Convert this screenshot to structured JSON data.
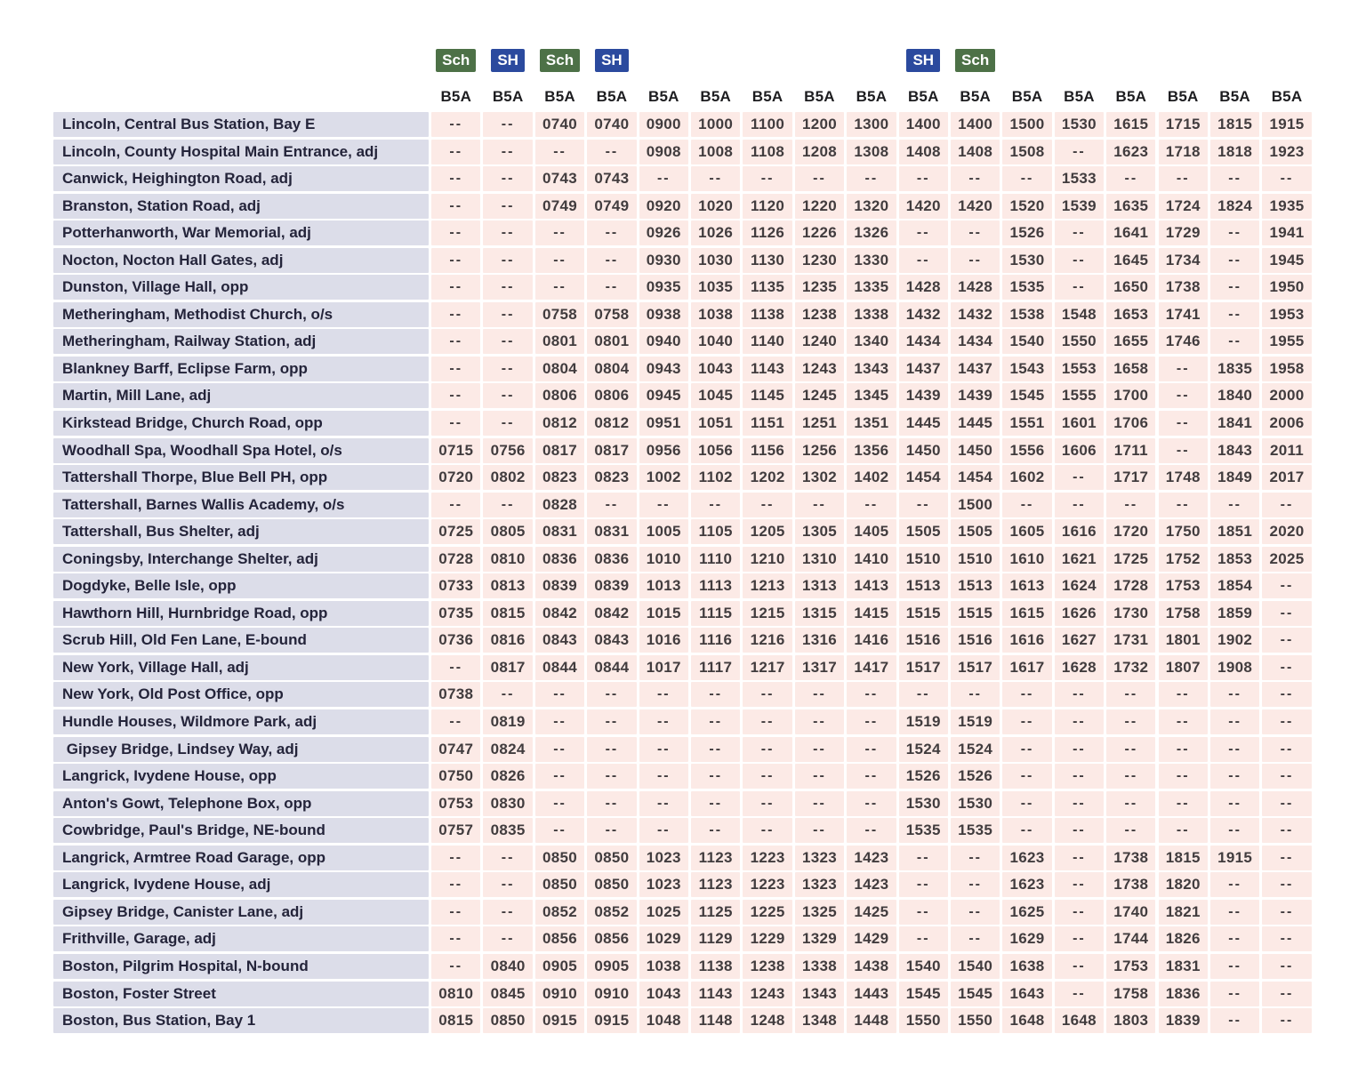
{
  "no_service": "--",
  "colors": {
    "badge_school": "#4d7147",
    "badge_school_holiday": "#2b4a9e",
    "stop_cell_background": "#dcdde9",
    "time_cell_background": "#fceae6",
    "stop_text": "#24243a",
    "time_text": "#413c3e"
  },
  "legend_badges": [
    {
      "label": "Sch",
      "type": "school",
      "column": 1
    },
    {
      "label": "SH",
      "type": "school_holiday",
      "column": 2
    },
    {
      "label": "Sch",
      "type": "school",
      "column": 3
    },
    {
      "label": "SH",
      "type": "school_holiday",
      "column": 4
    },
    {
      "label": "SH",
      "type": "school_holiday",
      "column": 10
    },
    {
      "label": "Sch",
      "type": "school",
      "column": 11
    }
  ],
  "route_labels": [
    "B5A",
    "B5A",
    "B5A",
    "B5A",
    "B5A",
    "B5A",
    "B5A",
    "B5A",
    "B5A",
    "B5A",
    "B5A",
    "B5A",
    "B5A",
    "B5A",
    "B5A",
    "B5A",
    "B5A"
  ],
  "rows": [
    {
      "stop": "Lincoln, Central Bus Station, Bay E",
      "times": [
        "--",
        "--",
        "0740",
        "0740",
        "0900",
        "1000",
        "1100",
        "1200",
        "1300",
        "1400",
        "1400",
        "1500",
        "1530",
        "1615",
        "1715",
        "1815",
        "1915"
      ]
    },
    {
      "stop": "Lincoln, County Hospital Main Entrance, adj",
      "times": [
        "--",
        "--",
        "--",
        "--",
        "0908",
        "1008",
        "1108",
        "1208",
        "1308",
        "1408",
        "1408",
        "1508",
        "--",
        "1623",
        "1718",
        "1818",
        "1923"
      ]
    },
    {
      "stop": "Canwick, Heighington Road, adj",
      "times": [
        "--",
        "--",
        "0743",
        "0743",
        "--",
        "--",
        "--",
        "--",
        "--",
        "--",
        "--",
        "--",
        "1533",
        "--",
        "--",
        "--",
        "--"
      ]
    },
    {
      "stop": "Branston, Station Road, adj",
      "times": [
        "--",
        "--",
        "0749",
        "0749",
        "0920",
        "1020",
        "1120",
        "1220",
        "1320",
        "1420",
        "1420",
        "1520",
        "1539",
        "1635",
        "1724",
        "1824",
        "1935"
      ]
    },
    {
      "stop": "Potterhanworth, War Memorial, adj",
      "times": [
        "--",
        "--",
        "--",
        "--",
        "0926",
        "1026",
        "1126",
        "1226",
        "1326",
        "--",
        "--",
        "1526",
        "--",
        "1641",
        "1729",
        "--",
        "1941"
      ]
    },
    {
      "stop": "Nocton, Nocton Hall Gates, adj",
      "times": [
        "--",
        "--",
        "--",
        "--",
        "0930",
        "1030",
        "1130",
        "1230",
        "1330",
        "--",
        "--",
        "1530",
        "--",
        "1645",
        "1734",
        "--",
        "1945"
      ]
    },
    {
      "stop": "Dunston, Village Hall, opp",
      "times": [
        "--",
        "--",
        "--",
        "--",
        "0935",
        "1035",
        "1135",
        "1235",
        "1335",
        "1428",
        "1428",
        "1535",
        "--",
        "1650",
        "1738",
        "--",
        "1950"
      ]
    },
    {
      "stop": "Metheringham, Methodist Church, o/s",
      "times": [
        "--",
        "--",
        "0758",
        "0758",
        "0938",
        "1038",
        "1138",
        "1238",
        "1338",
        "1432",
        "1432",
        "1538",
        "1548",
        "1653",
        "1741",
        "--",
        "1953"
      ]
    },
    {
      "stop": "Metheringham, Railway Station, adj",
      "times": [
        "--",
        "--",
        "0801",
        "0801",
        "0940",
        "1040",
        "1140",
        "1240",
        "1340",
        "1434",
        "1434",
        "1540",
        "1550",
        "1655",
        "1746",
        "--",
        "1955"
      ]
    },
    {
      "stop": "Blankney Barff, Eclipse Farm, opp",
      "times": [
        "--",
        "--",
        "0804",
        "0804",
        "0943",
        "1043",
        "1143",
        "1243",
        "1343",
        "1437",
        "1437",
        "1543",
        "1553",
        "1658",
        "--",
        "1835",
        "1958"
      ]
    },
    {
      "stop": "Martin, Mill Lane, adj",
      "times": [
        "--",
        "--",
        "0806",
        "0806",
        "0945",
        "1045",
        "1145",
        "1245",
        "1345",
        "1439",
        "1439",
        "1545",
        "1555",
        "1700",
        "--",
        "1840",
        "2000"
      ]
    },
    {
      "stop": "Kirkstead Bridge, Church Road, opp",
      "times": [
        "--",
        "--",
        "0812",
        "0812",
        "0951",
        "1051",
        "1151",
        "1251",
        "1351",
        "1445",
        "1445",
        "1551",
        "1601",
        "1706",
        "--",
        "1841",
        "2006"
      ]
    },
    {
      "stop": "Woodhall Spa, Woodhall Spa Hotel, o/s",
      "times": [
        "0715",
        "0756",
        "0817",
        "0817",
        "0956",
        "1056",
        "1156",
        "1256",
        "1356",
        "1450",
        "1450",
        "1556",
        "1606",
        "1711",
        "--",
        "1843",
        "2011"
      ]
    },
    {
      "stop": "Tattershall Thorpe, Blue Bell PH, opp",
      "times": [
        "0720",
        "0802",
        "0823",
        "0823",
        "1002",
        "1102",
        "1202",
        "1302",
        "1402",
        "1454",
        "1454",
        "1602",
        "--",
        "1717",
        "1748",
        "1849",
        "2017"
      ]
    },
    {
      "stop": "Tattershall, Barnes Wallis Academy, o/s",
      "times": [
        "--",
        "--",
        "0828",
        "--",
        "--",
        "--",
        "--",
        "--",
        "--",
        "--",
        "1500",
        "--",
        "--",
        "--",
        "--",
        "--",
        "--"
      ]
    },
    {
      "stop": "Tattershall, Bus Shelter, adj",
      "times": [
        "0725",
        "0805",
        "0831",
        "0831",
        "1005",
        "1105",
        "1205",
        "1305",
        "1405",
        "1505",
        "1505",
        "1605",
        "1616",
        "1720",
        "1750",
        "1851",
        "2020"
      ]
    },
    {
      "stop": "Coningsby, Interchange Shelter, adj",
      "times": [
        "0728",
        "0810",
        "0836",
        "0836",
        "1010",
        "1110",
        "1210",
        "1310",
        "1410",
        "1510",
        "1510",
        "1610",
        "1621",
        "1725",
        "1752",
        "1853",
        "2025"
      ]
    },
    {
      "stop": "Dogdyke, Belle Isle, opp",
      "times": [
        "0733",
        "0813",
        "0839",
        "0839",
        "1013",
        "1113",
        "1213",
        "1313",
        "1413",
        "1513",
        "1513",
        "1613",
        "1624",
        "1728",
        "1753",
        "1854",
        "--"
      ]
    },
    {
      "stop": "Hawthorn Hill, Hurnbridge Road, opp",
      "times": [
        "0735",
        "0815",
        "0842",
        "0842",
        "1015",
        "1115",
        "1215",
        "1315",
        "1415",
        "1515",
        "1515",
        "1615",
        "1626",
        "1730",
        "1758",
        "1859",
        "--"
      ]
    },
    {
      "stop": "Scrub Hill, Old Fen Lane, E-bound",
      "times": [
        "0736",
        "0816",
        "0843",
        "0843",
        "1016",
        "1116",
        "1216",
        "1316",
        "1416",
        "1516",
        "1516",
        "1616",
        "1627",
        "1731",
        "1801",
        "1902",
        "--"
      ]
    },
    {
      "stop": "New York, Village Hall, adj",
      "times": [
        "--",
        "0817",
        "0844",
        "0844",
        "1017",
        "1117",
        "1217",
        "1317",
        "1417",
        "1517",
        "1517",
        "1617",
        "1628",
        "1732",
        "1807",
        "1908",
        "--"
      ]
    },
    {
      "stop": "New York, Old Post Office, opp",
      "times": [
        "0738",
        "--",
        "--",
        "--",
        "--",
        "--",
        "--",
        "--",
        "--",
        "--",
        "--",
        "--",
        "--",
        "--",
        "--",
        "--",
        "--"
      ]
    },
    {
      "stop": "Hundle Houses, Wildmore Park, adj",
      "times": [
        "--",
        "0819",
        "--",
        "--",
        "--",
        "--",
        "--",
        "--",
        "--",
        "1519",
        "1519",
        "--",
        "--",
        "--",
        "--",
        "--",
        "--"
      ]
    },
    {
      "stop": " Gipsey Bridge, Lindsey Way, adj",
      "times": [
        "0747",
        "0824",
        "--",
        "--",
        "--",
        "--",
        "--",
        "--",
        "--",
        "1524",
        "1524",
        "--",
        "--",
        "--",
        "--",
        "--",
        "--"
      ]
    },
    {
      "stop": "Langrick, Ivydene House, opp",
      "times": [
        "0750",
        "0826",
        "--",
        "--",
        "--",
        "--",
        "--",
        "--",
        "--",
        "1526",
        "1526",
        "--",
        "--",
        "--",
        "--",
        "--",
        "--"
      ]
    },
    {
      "stop": "Anton's Gowt, Telephone Box, opp",
      "times": [
        "0753",
        "0830",
        "--",
        "--",
        "--",
        "--",
        "--",
        "--",
        "--",
        "1530",
        "1530",
        "--",
        "--",
        "--",
        "--",
        "--",
        "--"
      ]
    },
    {
      "stop": "Cowbridge, Paul's Bridge, NE-bound",
      "times": [
        "0757",
        "0835",
        "--",
        "--",
        "--",
        "--",
        "--",
        "--",
        "--",
        "1535",
        "1535",
        "--",
        "--",
        "--",
        "--",
        "--",
        "--"
      ]
    },
    {
      "stop": "Langrick, Armtree Road Garage, opp",
      "times": [
        "--",
        "--",
        "0850",
        "0850",
        "1023",
        "1123",
        "1223",
        "1323",
        "1423",
        "--",
        "--",
        "1623",
        "--",
        "1738",
        "1815",
        "1915",
        "--"
      ]
    },
    {
      "stop": "Langrick, Ivydene House, adj",
      "times": [
        "--",
        "--",
        "0850",
        "0850",
        "1023",
        "1123",
        "1223",
        "1323",
        "1423",
        "--",
        "--",
        "1623",
        "--",
        "1738",
        "1820",
        "--",
        "--"
      ]
    },
    {
      "stop": "Gipsey Bridge, Canister Lane, adj",
      "times": [
        "--",
        "--",
        "0852",
        "0852",
        "1025",
        "1125",
        "1225",
        "1325",
        "1425",
        "--",
        "--",
        "1625",
        "--",
        "1740",
        "1821",
        "--",
        "--"
      ]
    },
    {
      "stop": "Frithville, Garage, adj",
      "times": [
        "--",
        "--",
        "0856",
        "0856",
        "1029",
        "1129",
        "1229",
        "1329",
        "1429",
        "--",
        "--",
        "1629",
        "--",
        "1744",
        "1826",
        "--",
        "--"
      ]
    },
    {
      "stop": "Boston, Pilgrim Hospital, N-bound",
      "times": [
        "--",
        "0840",
        "0905",
        "0905",
        "1038",
        "1138",
        "1238",
        "1338",
        "1438",
        "1540",
        "1540",
        "1638",
        "--",
        "1753",
        "1831",
        "--",
        "--"
      ]
    },
    {
      "stop": "Boston, Foster Street",
      "times": [
        "0810",
        "0845",
        "0910",
        "0910",
        "1043",
        "1143",
        "1243",
        "1343",
        "1443",
        "1545",
        "1545",
        "1643",
        "--",
        "1758",
        "1836",
        "--",
        "--"
      ]
    },
    {
      "stop": "Boston, Bus Station, Bay 1",
      "times": [
        "0815",
        "0850",
        "0915",
        "0915",
        "1048",
        "1148",
        "1248",
        "1348",
        "1448",
        "1550",
        "1550",
        "1648",
        "1648",
        "1803",
        "1839",
        "--",
        "--"
      ]
    }
  ]
}
